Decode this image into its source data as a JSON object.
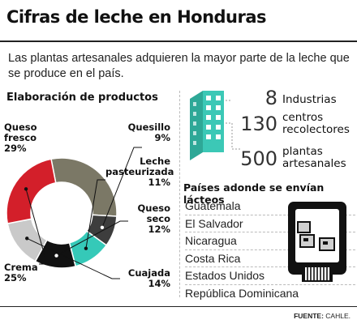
{
  "header": {
    "title": "Cifras de leche en Honduras",
    "subtitle": "Las plantas artesanales adquieren la mayor parte de la leche que se produce en el país."
  },
  "colors": {
    "queso_fresco": "#7b7866",
    "quesillo": "#3d3d3d",
    "leche_pasteurizada": "#35c9b8",
    "queso_seco": "#111111",
    "cuajada": "#c9c9c9",
    "crema": "#d31f2a",
    "building": "#3cc8b6"
  },
  "chart_data": {
    "type": "pie",
    "title": "Elaboración de productos",
    "donut": true,
    "slices": [
      {
        "name": "Queso fresco",
        "value": 29,
        "label": "29%"
      },
      {
        "name": "Quesillo",
        "value": 9,
        "label": "9%"
      },
      {
        "name": "Leche pasteurizada",
        "value": 11,
        "label": "11%"
      },
      {
        "name": "Queso seco",
        "value": 12,
        "label": "12%"
      },
      {
        "name": "Cuajada",
        "value": 14,
        "label": "14%"
      },
      {
        "name": "Crema",
        "value": 25,
        "label": "25%"
      }
    ]
  },
  "labels": {
    "queso_fresco": [
      "Queso",
      "fresco"
    ],
    "quesillo": [
      "Quesillo"
    ],
    "leche_pasteurizada": [
      "Leche",
      "pasteurizada"
    ],
    "queso_seco": [
      "Queso",
      "seco"
    ],
    "cuajada": [
      "Cuajada"
    ],
    "crema": [
      "Crema"
    ]
  },
  "stats": [
    {
      "number": "8",
      "label_lines": [
        "Industrias"
      ]
    },
    {
      "number": "130",
      "label_lines": [
        "centros",
        "recolectores"
      ]
    },
    {
      "number": "500",
      "label_lines": [
        "plantas",
        "artesanales"
      ]
    }
  ],
  "stats_icon": "building-icon",
  "countries": {
    "title": "Países adonde se envían lácteos",
    "items": [
      "Guatemala",
      "El Salvador",
      "Nicaragua",
      "Costa Rica",
      "Estados Unidos",
      "República Dominicana"
    ],
    "icon": "delivery-truck-icon"
  },
  "footer": {
    "source_label": "FUENTE:",
    "source_value": "CAHLE."
  }
}
